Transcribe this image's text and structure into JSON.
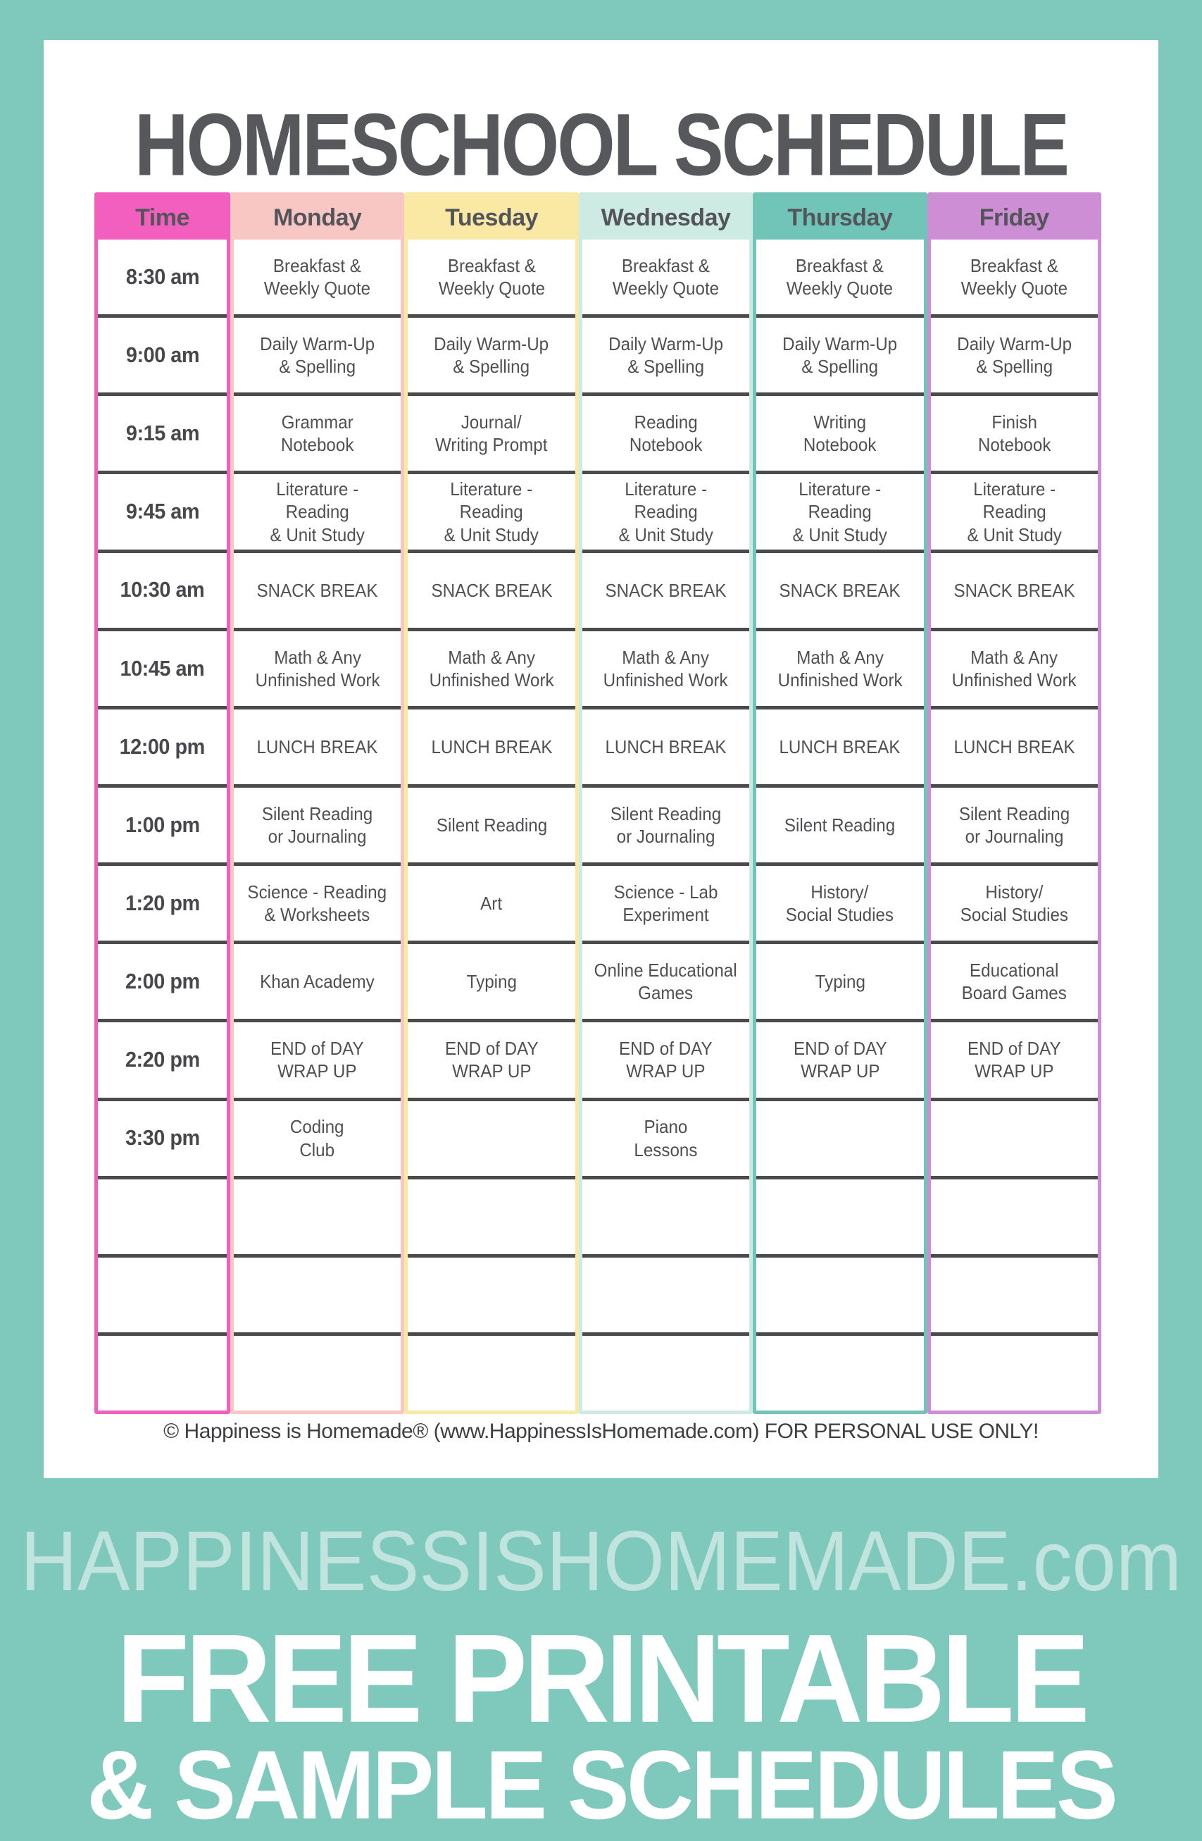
{
  "page": {
    "title": "HOMESCHOOL SCHEDULE",
    "copyright": "© Happiness is Homemade® (www.HappinessIsHomemade.com)  FOR PERSONAL USE ONLY!"
  },
  "banner": {
    "website": "HAPPINESSISHOMEMADE.com",
    "headline": "FREE PRINTABLE",
    "subheadline": "& SAMPLE SCHEDULES"
  },
  "colors": {
    "page_background": "#7EC8BC",
    "card_background": "#FFFFFF",
    "heading_text": "#57585B",
    "cell_text": "#4F5054",
    "grid_line": "#4A4B4D",
    "banner_website_text": "#C2E4DE",
    "banner_text": "#FFFFFF",
    "time_column": "#F25FBE",
    "monday_column": "#F8C6C3",
    "tuesday_column": "#F9E9A4",
    "wednesday_column": "#CDEAE3",
    "thursday_column": "#71C5B8",
    "friday_column": "#CD8ED5"
  },
  "schedule": {
    "columns": [
      {
        "key": "time",
        "label": "Time",
        "color": "#F25FBE"
      },
      {
        "key": "monday",
        "label": "Monday",
        "color": "#F8C6C3"
      },
      {
        "key": "tuesday",
        "label": "Tuesday",
        "color": "#F9E9A4"
      },
      {
        "key": "wednesday",
        "label": "Wednesday",
        "color": "#CDEAE3"
      },
      {
        "key": "thursday",
        "label": "Thursday",
        "color": "#71C5B8"
      },
      {
        "key": "friday",
        "label": "Friday",
        "color": "#CD8ED5"
      }
    ],
    "rows": [
      {
        "time": "8:30 am",
        "entries": [
          "Breakfast &\nWeekly Quote",
          "Breakfast &\nWeekly Quote",
          "Breakfast &\nWeekly Quote",
          "Breakfast &\nWeekly Quote",
          "Breakfast &\nWeekly Quote"
        ]
      },
      {
        "time": "9:00 am",
        "entries": [
          "Daily Warm-Up\n& Spelling",
          "Daily Warm-Up\n& Spelling",
          "Daily Warm-Up\n& Spelling",
          "Daily Warm-Up\n& Spelling",
          "Daily Warm-Up\n& Spelling"
        ]
      },
      {
        "time": "9:15 am",
        "entries": [
          "Grammar\nNotebook",
          "Journal/\nWriting Prompt",
          "Reading\nNotebook",
          "Writing\nNotebook",
          "Finish\nNotebook"
        ]
      },
      {
        "time": "9:45 am",
        "entries": [
          "Literature - Reading\n& Unit Study",
          "Literature - Reading\n& Unit Study",
          "Literature - Reading\n& Unit Study",
          "Literature - Reading\n& Unit Study",
          "Literature - Reading\n& Unit Study"
        ]
      },
      {
        "time": "10:30 am",
        "entries": [
          "SNACK BREAK",
          "SNACK BREAK",
          "SNACK BREAK",
          "SNACK BREAK",
          "SNACK BREAK"
        ]
      },
      {
        "time": "10:45 am",
        "entries": [
          "Math & Any\nUnfinished Work",
          "Math & Any\nUnfinished Work",
          "Math & Any\nUnfinished Work",
          "Math & Any\nUnfinished Work",
          "Math & Any\nUnfinished Work"
        ]
      },
      {
        "time": "12:00 pm",
        "entries": [
          "LUNCH BREAK",
          "LUNCH BREAK",
          "LUNCH BREAK",
          "LUNCH BREAK",
          "LUNCH BREAK"
        ]
      },
      {
        "time": "1:00 pm",
        "entries": [
          "Silent Reading\nor Journaling",
          "Silent Reading",
          "Silent Reading\nor Journaling",
          "Silent Reading",
          "Silent Reading\nor Journaling"
        ]
      },
      {
        "time": "1:20 pm",
        "entries": [
          "Science - Reading\n& Worksheets",
          "Art",
          "Science - Lab\nExperiment",
          "History/\nSocial Studies",
          "History/\nSocial Studies"
        ]
      },
      {
        "time": "2:00 pm",
        "entries": [
          "Khan Academy",
          "Typing",
          "Online Educational\nGames",
          "Typing",
          "Educational\nBoard Games"
        ]
      },
      {
        "time": "2:20 pm",
        "entries": [
          "END of DAY\nWRAP UP",
          "END of DAY\nWRAP UP",
          "END of DAY\nWRAP UP",
          "END of DAY\nWRAP UP",
          "END of DAY\nWRAP UP"
        ]
      },
      {
        "time": "3:30 pm",
        "entries": [
          "Coding\nClub",
          "",
          "Piano\nLessons",
          "",
          ""
        ]
      },
      {
        "time": "",
        "entries": [
          "",
          "",
          "",
          "",
          ""
        ]
      },
      {
        "time": "",
        "entries": [
          "",
          "",
          "",
          "",
          ""
        ]
      },
      {
        "time": "",
        "entries": [
          "",
          "",
          "",
          "",
          ""
        ]
      }
    ]
  }
}
